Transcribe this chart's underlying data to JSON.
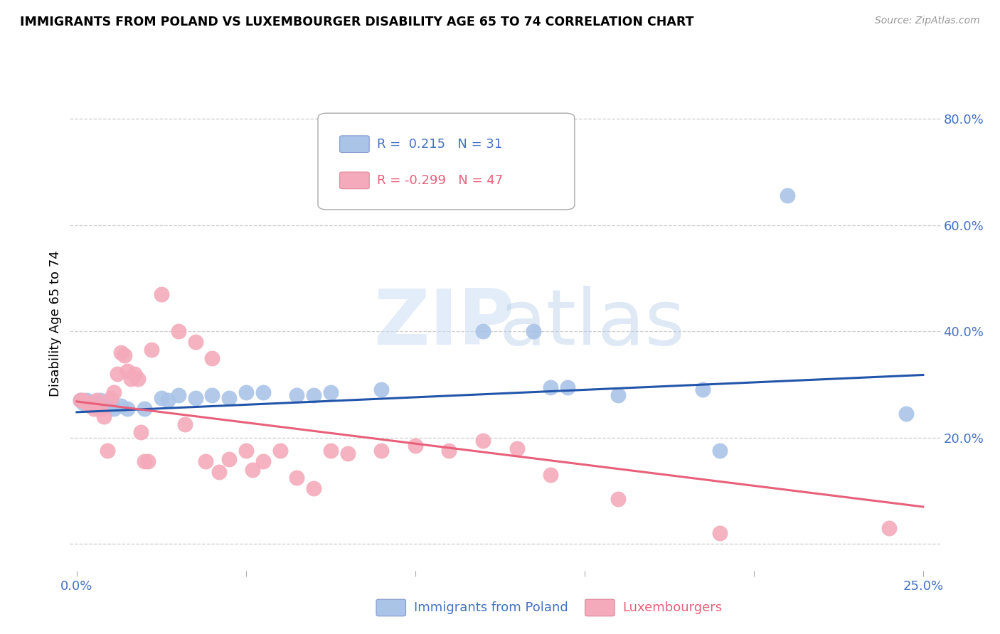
{
  "title": "IMMIGRANTS FROM POLAND VS LUXEMBOURGER DISABILITY AGE 65 TO 74 CORRELATION CHART",
  "source": "Source: ZipAtlas.com",
  "ylabel": "Disability Age 65 to 74",
  "blue_scatter_color": "#aac4e8",
  "pink_scatter_color": "#f4aabb",
  "blue_line_color": "#2255aa",
  "pink_line_color": "#e8607a",
  "legend_text_color_blue": "#4472c4",
  "legend_text_color_pink": "#e8607a",
  "xtick_color": "#4472c4",
  "ytick_color": "#4472c4",
  "blue_points": [
    [
      0.001,
      0.27
    ],
    [
      0.002,
      0.265
    ],
    [
      0.003,
      0.27
    ],
    [
      0.005,
      0.265
    ],
    [
      0.007,
      0.27
    ],
    [
      0.009,
      0.26
    ],
    [
      0.011,
      0.255
    ],
    [
      0.013,
      0.26
    ],
    [
      0.015,
      0.255
    ],
    [
      0.02,
      0.255
    ],
    [
      0.025,
      0.275
    ],
    [
      0.027,
      0.27
    ],
    [
      0.03,
      0.28
    ],
    [
      0.035,
      0.275
    ],
    [
      0.04,
      0.28
    ],
    [
      0.045,
      0.275
    ],
    [
      0.05,
      0.285
    ],
    [
      0.055,
      0.285
    ],
    [
      0.065,
      0.28
    ],
    [
      0.07,
      0.28
    ],
    [
      0.075,
      0.285
    ],
    [
      0.09,
      0.29
    ],
    [
      0.12,
      0.4
    ],
    [
      0.135,
      0.4
    ],
    [
      0.14,
      0.295
    ],
    [
      0.145,
      0.295
    ],
    [
      0.16,
      0.28
    ],
    [
      0.185,
      0.29
    ],
    [
      0.19,
      0.175
    ],
    [
      0.21,
      0.655
    ],
    [
      0.245,
      0.245
    ]
  ],
  "pink_points": [
    [
      0.001,
      0.27
    ],
    [
      0.002,
      0.27
    ],
    [
      0.003,
      0.265
    ],
    [
      0.004,
      0.26
    ],
    [
      0.005,
      0.255
    ],
    [
      0.006,
      0.27
    ],
    [
      0.007,
      0.255
    ],
    [
      0.008,
      0.24
    ],
    [
      0.009,
      0.175
    ],
    [
      0.01,
      0.275
    ],
    [
      0.011,
      0.285
    ],
    [
      0.012,
      0.32
    ],
    [
      0.013,
      0.36
    ],
    [
      0.014,
      0.355
    ],
    [
      0.015,
      0.325
    ],
    [
      0.016,
      0.31
    ],
    [
      0.017,
      0.32
    ],
    [
      0.018,
      0.31
    ],
    [
      0.019,
      0.21
    ],
    [
      0.02,
      0.155
    ],
    [
      0.021,
      0.155
    ],
    [
      0.022,
      0.365
    ],
    [
      0.025,
      0.47
    ],
    [
      0.03,
      0.4
    ],
    [
      0.032,
      0.225
    ],
    [
      0.035,
      0.38
    ],
    [
      0.038,
      0.155
    ],
    [
      0.04,
      0.35
    ],
    [
      0.042,
      0.135
    ],
    [
      0.045,
      0.16
    ],
    [
      0.05,
      0.175
    ],
    [
      0.052,
      0.14
    ],
    [
      0.055,
      0.155
    ],
    [
      0.06,
      0.175
    ],
    [
      0.065,
      0.125
    ],
    [
      0.07,
      0.105
    ],
    [
      0.075,
      0.175
    ],
    [
      0.08,
      0.17
    ],
    [
      0.09,
      0.175
    ],
    [
      0.1,
      0.185
    ],
    [
      0.11,
      0.175
    ],
    [
      0.12,
      0.195
    ],
    [
      0.13,
      0.18
    ],
    [
      0.14,
      0.13
    ],
    [
      0.16,
      0.085
    ],
    [
      0.19,
      0.02
    ],
    [
      0.24,
      0.03
    ]
  ],
  "blue_line": {
    "x0": 0.0,
    "y0": 0.248,
    "x1": 0.25,
    "y1": 0.318
  },
  "pink_line": {
    "x0": 0.0,
    "y0": 0.268,
    "x1": 0.25,
    "y1": 0.07
  },
  "xlim": [
    -0.002,
    0.255
  ],
  "ylim": [
    -0.05,
    0.88
  ],
  "yticks": [
    0.0,
    0.2,
    0.4,
    0.6,
    0.8
  ],
  "ytick_labels": [
    "",
    "20.0%",
    "40.0%",
    "60.0%",
    "80.0%"
  ],
  "xticks": [
    0.0,
    0.05,
    0.1,
    0.15,
    0.2,
    0.25
  ],
  "xtick_labels": [
    "0.0%",
    "",
    "",
    "",
    "",
    "25.0%"
  ]
}
